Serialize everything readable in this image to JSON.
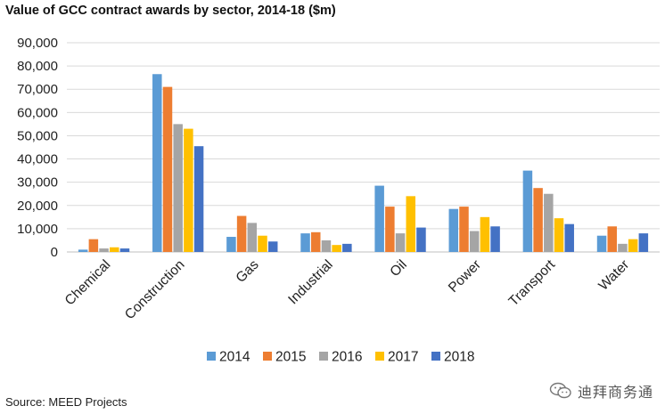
{
  "chart_data": {
    "type": "bar",
    "title": "Value of GCC contract awards by sector, 2014-18 ($m)",
    "xlabel": "",
    "ylabel": "",
    "ylim": [
      0,
      90000
    ],
    "yticks": [
      0,
      10000,
      20000,
      30000,
      40000,
      50000,
      60000,
      70000,
      80000,
      90000
    ],
    "ytick_labels": [
      "0",
      "10,000",
      "20,000",
      "30,000",
      "40,000",
      "50,000",
      "60,000",
      "70,000",
      "80,000",
      "90,000"
    ],
    "grid": true,
    "legend_position": "bottom",
    "categories": [
      "Chemical",
      "Construction",
      "Gas",
      "Industrial",
      "Oil",
      "Power",
      "Transport",
      "Water"
    ],
    "series": [
      {
        "name": "2014",
        "color": "#5B9BD5",
        "values": [
          1000,
          76500,
          6500,
          8000,
          28500,
          18500,
          35000,
          7000
        ]
      },
      {
        "name": "2015",
        "color": "#ED7D31",
        "values": [
          5500,
          71000,
          15500,
          8500,
          19500,
          19500,
          27500,
          11000
        ]
      },
      {
        "name": "2016",
        "color": "#A5A5A5",
        "values": [
          1500,
          55000,
          12500,
          5000,
          8000,
          9000,
          25000,
          3500
        ]
      },
      {
        "name": "2017",
        "color": "#FFC000",
        "values": [
          2000,
          53000,
          7000,
          3000,
          24000,
          15000,
          14500,
          5500
        ]
      },
      {
        "name": "2018",
        "color": "#4472C4",
        "values": [
          1500,
          45500,
          4500,
          3500,
          10500,
          11000,
          12000,
          8000
        ]
      }
    ]
  },
  "source": "Source: MEED Projects",
  "watermark": {
    "text": "迪拜商务通",
    "icon": "wechat-icon"
  }
}
